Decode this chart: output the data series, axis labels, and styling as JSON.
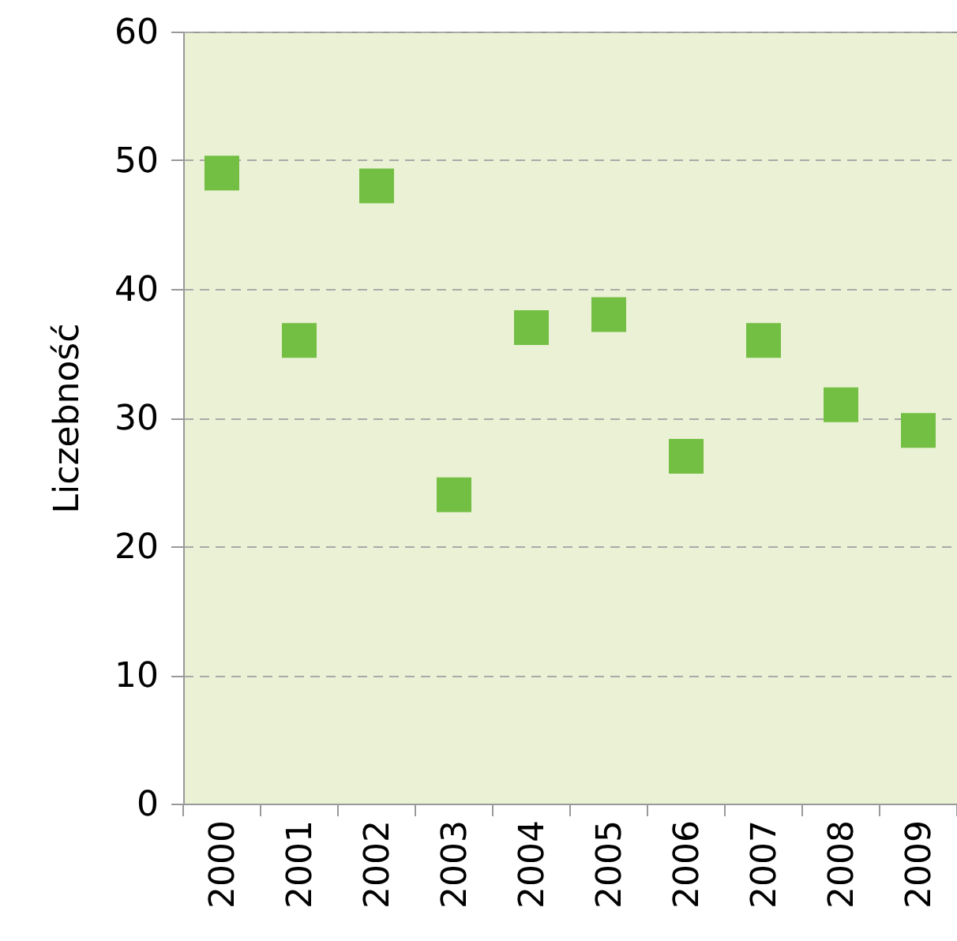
{
  "chart_data": {
    "type": "scatter",
    "ylabel": "Liczebność",
    "categories": [
      "2000",
      "2001",
      "2002",
      "2003",
      "2004",
      "2005",
      "2006",
      "2007",
      "2008",
      "2009"
    ],
    "series": [
      {
        "color": "#72bf44",
        "values": [
          49,
          36,
          48,
          24,
          37,
          38,
          27,
          36,
          31,
          29
        ]
      }
    ],
    "ylim": [
      0,
      60
    ],
    "yticks": [
      0,
      10,
      20,
      30,
      40,
      50,
      60
    ],
    "grid": "y",
    "marker": "square",
    "legend": false
  }
}
